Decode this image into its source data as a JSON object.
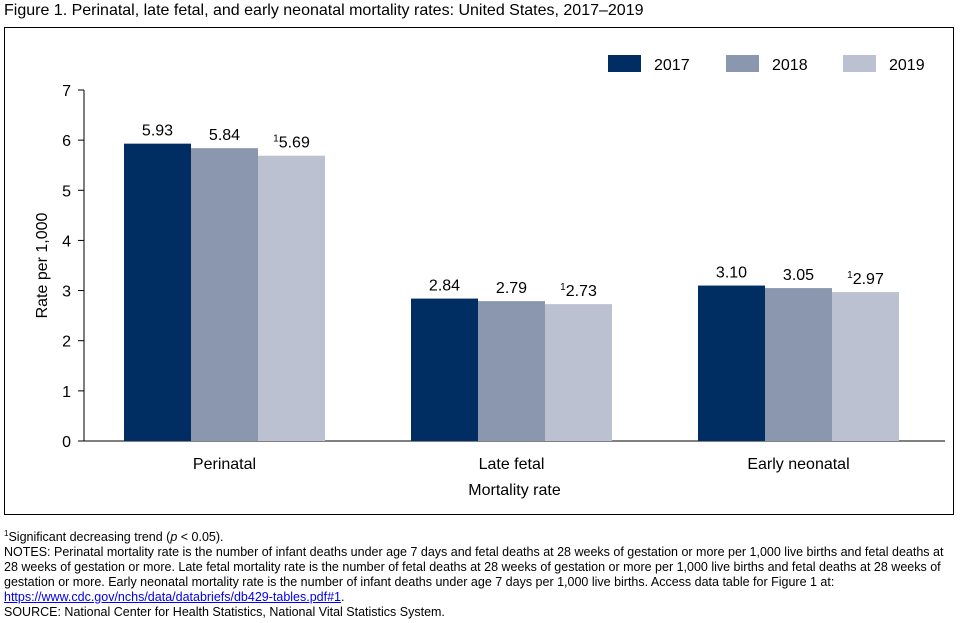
{
  "figure_title": "Figure 1. Perinatal, late fetal, and early neonatal mortality rates: United States, 2017–2019",
  "chart_data": {
    "type": "bar",
    "title": "Figure 1. Perinatal, late fetal, and early neonatal mortality rates: United States, 2017–2019",
    "xlabel": "Mortality rate",
    "ylabel": "Rate per 1,000",
    "ylim": [
      0,
      7
    ],
    "yticks": [
      0,
      1,
      2,
      3,
      4,
      5,
      6,
      7
    ],
    "grid": false,
    "legend_position": "top-right",
    "categories": [
      "Perinatal",
      "Late fetal",
      "Early neonatal"
    ],
    "series": [
      {
        "name": "2017",
        "color": "#002d62",
        "values": [
          5.93,
          2.84,
          3.1
        ],
        "labels": [
          "5.93",
          "2.84",
          "3.10"
        ],
        "footnote": [
          "",
          "",
          ""
        ]
      },
      {
        "name": "2018",
        "color": "#8b97ae",
        "values": [
          5.84,
          2.79,
          3.05
        ],
        "labels": [
          "5.84",
          "2.79",
          "3.05"
        ],
        "footnote": [
          "",
          "",
          ""
        ]
      },
      {
        "name": "2019",
        "color": "#bbc1d0",
        "values": [
          5.69,
          2.73,
          2.97
        ],
        "labels": [
          "5.69",
          "2.73",
          "2.97"
        ],
        "footnote": [
          "1",
          "1",
          "1"
        ]
      }
    ]
  },
  "footnotes": {
    "marker": "1",
    "significance_prefix": "Significant decreasing trend (",
    "significance_p": "p",
    "significance_suffix": " < 0.05).",
    "notes_text": "NOTES: Perinatal mortality rate is the number of infant deaths under age 7 days and fetal deaths at 28 weeks of gestation or more per 1,000 live births and fetal deaths at 28 weeks of gestation or more. Late fetal mortality rate is the number of fetal deaths at 28 weeks of gestation or more per 1,000 live births and fetal deaths at 28 weeks of gestation or more. Early neonatal mortality rate is the number of infant deaths under age 7 days per 1,000 live births. Access data table for Figure 1 at: ",
    "notes_link": "https://www.cdc.gov/nchs/data/databriefs/db429-tables.pdf#1",
    "notes_end": ".",
    "source": "SOURCE: National Center for Health Statistics, National Vital Statistics System."
  }
}
